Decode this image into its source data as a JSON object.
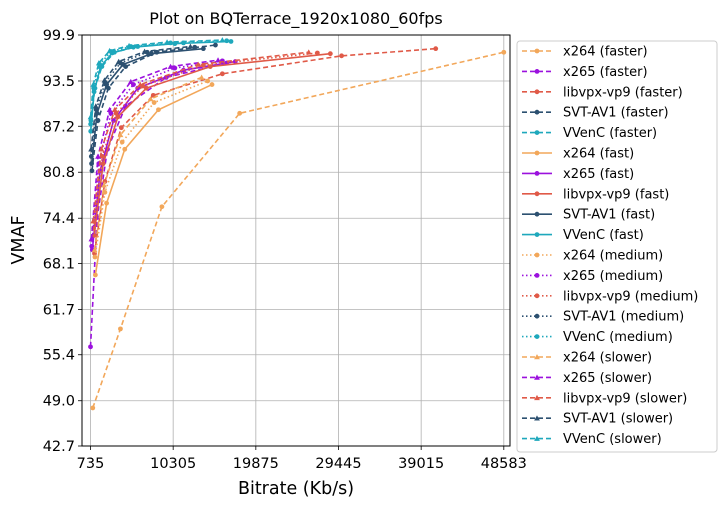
{
  "chart_data": {
    "type": "line",
    "title": "Plot on BQTerrace_1920x1080_60fps",
    "xlabel": "Bitrate (Kb/s)",
    "ylabel": "VMAF",
    "xlim": [
      -250,
      49300
    ],
    "ylim": [
      42.7,
      99.9
    ],
    "xticks": [
      735,
      10305,
      19875,
      29445,
      39015,
      48583
    ],
    "yticks": [
      42.7,
      49.0,
      55.4,
      61.7,
      68.1,
      74.4,
      80.8,
      87.2,
      93.5,
      99.9
    ],
    "grid": true,
    "legend_position": "right-outside",
    "colors": {
      "x264": "#f2a75a",
      "x265": "#9b11de",
      "libvpx-vp9": "#e05a48",
      "SVT-AV1": "#2c5070",
      "VVenC": "#1ea8bc"
    },
    "series": [
      {
        "name": "x264 (faster)",
        "codec": "x264",
        "preset": "faster",
        "line": "dashed",
        "marker": "circle",
        "x": [
          1000,
          4200,
          9000,
          18000,
          48583
        ],
        "y": [
          48.0,
          59.0,
          76.0,
          89.0,
          97.5
        ]
      },
      {
        "name": "x265 (faster)",
        "codec": "x265",
        "preset": "faster",
        "line": "dashed",
        "marker": "circle",
        "x": [
          735,
          1500,
          2700,
          4800,
          9500,
          16500
        ],
        "y": [
          56.5,
          74.5,
          84.0,
          90.0,
          94.0,
          96.0
        ]
      },
      {
        "name": "libvpx-vp9 (faster)",
        "codec": "libvpx-vp9",
        "preset": "faster",
        "line": "dashed",
        "marker": "circle",
        "x": [
          1200,
          2400,
          4300,
          8000,
          16000,
          29800,
          40700
        ],
        "y": [
          69.5,
          79.5,
          87.0,
          91.5,
          94.5,
          97.0,
          98.0
        ]
      },
      {
        "name": "SVT-AV1 (faster)",
        "codec": "SVT-AV1",
        "preset": "faster",
        "line": "dashed",
        "marker": "circle",
        "x": [
          900,
          1600,
          2800,
          4800,
          8400,
          15200
        ],
        "y": [
          81.0,
          88.0,
          92.5,
          95.5,
          97.5,
          98.5
        ]
      },
      {
        "name": "VVenC (faster)",
        "codec": "VVenC",
        "preset": "faster",
        "line": "dashed",
        "marker": "circle",
        "x": [
          780,
          1250,
          2050,
          3500,
          6200,
          11500
        ],
        "y": [
          88.0,
          92.5,
          95.5,
          97.5,
          98.3,
          98.8
        ]
      },
      {
        "name": "x264 (fast)",
        "codec": "x264",
        "preset": "fast",
        "line": "solid",
        "marker": "circle",
        "x": [
          1300,
          2600,
          4700,
          8600,
          14800
        ],
        "y": [
          66.5,
          76.5,
          84.0,
          89.5,
          93.0
        ]
      },
      {
        "name": "x265 (fast)",
        "codec": "x265",
        "preset": "fast",
        "line": "solid",
        "marker": "circle",
        "x": [
          950,
          1850,
          3400,
          6200,
          11500,
          17500
        ],
        "y": [
          70.0,
          81.0,
          88.0,
          92.5,
          95.0,
          96.2
        ]
      },
      {
        "name": "libvpx-vp9 (fast)",
        "codec": "libvpx-vp9",
        "preset": "fast",
        "line": "solid",
        "marker": "circle",
        "x": [
          1150,
          2200,
          3900,
          7200,
          14600,
          28500
        ],
        "y": [
          72.0,
          82.0,
          88.5,
          92.5,
          95.5,
          97.3
        ]
      },
      {
        "name": "SVT-AV1 (fast)",
        "codec": "SVT-AV1",
        "preset": "fast",
        "line": "solid",
        "marker": "circle",
        "x": [
          860,
          1500,
          2600,
          4500,
          7800,
          13800
        ],
        "y": [
          82.0,
          89.0,
          93.0,
          95.8,
          97.3,
          98.0
        ]
      },
      {
        "name": "VVenC (fast)",
        "codec": "VVenC",
        "preset": "fast",
        "line": "solid",
        "marker": "circle",
        "x": [
          760,
          1150,
          1900,
          3250,
          5700,
          10500,
          17000
        ],
        "y": [
          86.5,
          92.0,
          95.5,
          97.4,
          98.2,
          98.7,
          99.0
        ]
      },
      {
        "name": "x264 (medium)",
        "codec": "x264",
        "preset": "medium",
        "line": "dotted",
        "marker": "circle",
        "x": [
          1250,
          2400,
          4400,
          8100,
          14300
        ],
        "y": [
          69.0,
          78.0,
          85.0,
          90.5,
          93.5
        ]
      },
      {
        "name": "x265 (medium)",
        "codec": "x265",
        "preset": "medium",
        "line": "dotted",
        "marker": "circle",
        "x": [
          880,
          1700,
          3100,
          5700,
          10500,
          16000
        ],
        "y": [
          70.5,
          82.0,
          89.0,
          93.0,
          95.3,
          96.3
        ]
      },
      {
        "name": "libvpx-vp9 (medium)",
        "codec": "libvpx-vp9",
        "preset": "medium",
        "line": "dotted",
        "marker": "circle",
        "x": [
          1100,
          2100,
          3700,
          6800,
          13800,
          27000
        ],
        "y": [
          73.0,
          83.0,
          89.0,
          92.8,
          95.7,
          97.4
        ]
      },
      {
        "name": "SVT-AV1 (medium)",
        "codec": "SVT-AV1",
        "preset": "medium",
        "line": "dotted",
        "marker": "circle",
        "x": [
          830,
          1400,
          2450,
          4200,
          7300,
          12800
        ],
        "y": [
          83.0,
          89.5,
          93.3,
          96.0,
          97.5,
          98.2
        ]
      },
      {
        "name": "VVenC (medium)",
        "codec": "VVenC",
        "preset": "medium",
        "line": "dotted",
        "marker": "circle",
        "x": [
          750,
          1100,
          1800,
          3100,
          5400,
          10000,
          16500
        ],
        "y": [
          87.5,
          92.5,
          95.8,
          97.6,
          98.3,
          98.8,
          99.1
        ]
      },
      {
        "name": "x264 (slower)",
        "codec": "x264",
        "preset": "slower",
        "line": "dashed",
        "marker": "triangle",
        "x": [
          1200,
          2300,
          4200,
          7700,
          13600
        ],
        "y": [
          70.0,
          79.0,
          86.0,
          91.0,
          94.0
        ]
      },
      {
        "name": "x265 (slower)",
        "codec": "x265",
        "preset": "slower",
        "line": "dashed",
        "marker": "triangle",
        "x": [
          840,
          1600,
          2950,
          5400,
          10000,
          15500
        ],
        "y": [
          71.5,
          83.0,
          89.5,
          93.4,
          95.5,
          96.4
        ]
      },
      {
        "name": "libvpx-vp9 (slower)",
        "codec": "libvpx-vp9",
        "preset": "slower",
        "line": "dashed",
        "marker": "triangle",
        "x": [
          1050,
          2000,
          3550,
          6500,
          13200,
          26000
        ],
        "y": [
          74.0,
          84.0,
          89.5,
          93.0,
          95.8,
          97.5
        ]
      },
      {
        "name": "SVT-AV1 (slower)",
        "codec": "SVT-AV1",
        "preset": "slower",
        "line": "dashed",
        "marker": "triangle",
        "x": [
          800,
          1350,
          2350,
          4000,
          7000,
          12300
        ],
        "y": [
          84.0,
          90.0,
          93.6,
          96.2,
          97.6,
          98.3
        ]
      },
      {
        "name": "VVenC (slower)",
        "codec": "VVenC",
        "preset": "slower",
        "line": "dashed",
        "marker": "triangle",
        "x": [
          745,
          1050,
          1700,
          2950,
          5200,
          9600,
          16000
        ],
        "y": [
          88.5,
          93.0,
          96.0,
          97.7,
          98.4,
          98.9,
          99.2
        ]
      }
    ]
  }
}
